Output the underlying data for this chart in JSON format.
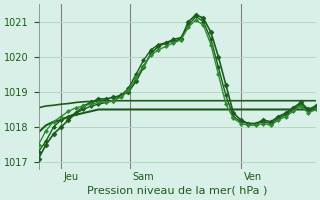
{
  "title": "Pression niveau de la mer( hPa )",
  "background_color": "#d8f0e8",
  "grid_color": "#b0d8c0",
  "line_color_dark": "#1a5c1a",
  "line_color_light": "#2e8b2e",
  "ylim": [
    1016.8,
    1021.5
  ],
  "yticks": [
    1017,
    1018,
    1019,
    1020,
    1021
  ],
  "day_labels": [
    "Jeu",
    "Sam",
    "Ven"
  ],
  "day_positions": [
    0.08,
    0.33,
    0.73
  ],
  "series": [
    [
      1017.1,
      1017.5,
      1017.8,
      1018.0,
      1018.2,
      1018.4,
      1018.6,
      1018.7,
      1018.8,
      1018.8,
      1018.85,
      1018.9,
      1019.0,
      1019.3,
      1019.7,
      1020.1,
      1020.3,
      1020.4,
      1020.45,
      1020.5,
      1021.0,
      1021.2,
      1021.1,
      1020.7,
      1020.0,
      1019.2,
      1018.4,
      1018.2,
      1018.1,
      1018.1,
      1018.2,
      1018.15,
      1018.3,
      1018.4,
      1018.55,
      1018.7,
      1018.5,
      1018.6
    ],
    [
      1017.3,
      1017.6,
      1018.0,
      1018.2,
      1018.3,
      1018.4,
      1018.5,
      1018.6,
      1018.65,
      1018.7,
      1018.75,
      1018.9,
      1019.1,
      1019.5,
      1019.9,
      1020.2,
      1020.35,
      1020.4,
      1020.5,
      1020.55,
      1020.9,
      1021.15,
      1021.0,
      1020.5,
      1019.7,
      1018.9,
      1018.3,
      1018.15,
      1018.1,
      1018.1,
      1018.15,
      1018.1,
      1018.25,
      1018.35,
      1018.5,
      1018.65,
      1018.45,
      1018.55
    ],
    [
      1017.5,
      1017.9,
      1018.15,
      1018.3,
      1018.45,
      1018.55,
      1018.6,
      1018.65,
      1018.7,
      1018.7,
      1018.75,
      1018.85,
      1019.05,
      1019.4,
      1019.75,
      1020.05,
      1020.2,
      1020.3,
      1020.4,
      1020.48,
      1020.85,
      1021.05,
      1020.9,
      1020.35,
      1019.5,
      1018.65,
      1018.25,
      1018.1,
      1018.05,
      1018.05,
      1018.1,
      1018.05,
      1018.2,
      1018.3,
      1018.45,
      1018.6,
      1018.4,
      1018.5
    ],
    [
      1017.85,
      1018.05,
      1018.15,
      1018.2,
      1018.3,
      1018.35,
      1018.4,
      1018.45,
      1018.5,
      1018.5,
      1018.5,
      1018.5,
      1018.5,
      1018.5,
      1018.5,
      1018.5,
      1018.5,
      1018.5,
      1018.5,
      1018.5,
      1018.5,
      1018.5,
      1018.5,
      1018.5,
      1018.5,
      1018.5,
      1018.5,
      1018.5,
      1018.5,
      1018.5,
      1018.5,
      1018.5,
      1018.5,
      1018.5,
      1018.5,
      1018.5,
      1018.5,
      1018.5
    ],
    [
      1018.55,
      1018.6,
      1018.62,
      1018.65,
      1018.67,
      1018.7,
      1018.72,
      1018.73,
      1018.74,
      1018.75,
      1018.75,
      1018.75,
      1018.75,
      1018.75,
      1018.75,
      1018.75,
      1018.75,
      1018.75,
      1018.75,
      1018.75,
      1018.75,
      1018.75,
      1018.75,
      1018.75,
      1018.75,
      1018.75,
      1018.75,
      1018.75,
      1018.75,
      1018.75,
      1018.75,
      1018.75,
      1018.75,
      1018.75,
      1018.75,
      1018.75,
      1018.75,
      1018.75
    ]
  ]
}
